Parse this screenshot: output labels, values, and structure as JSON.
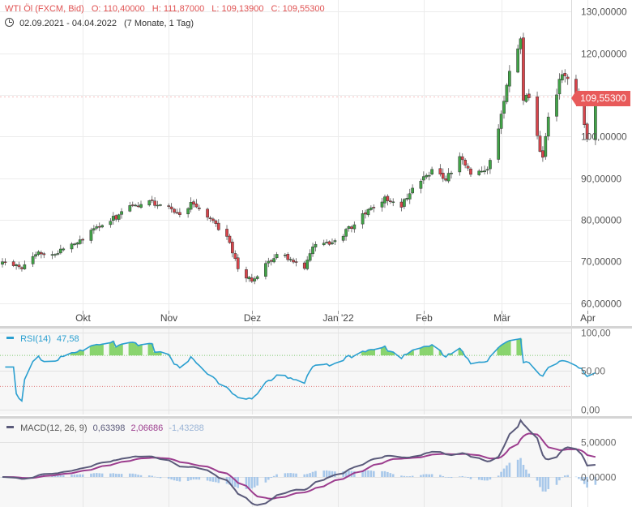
{
  "header": {
    "instrument": "WTI Öl (FXCM, Bid)",
    "open": "O: 110,40000",
    "high": "H: 111,87000",
    "low": "L: 109,13900",
    "close": "C: 109,55300",
    "period": "02.09.2021 - 04.04.2022",
    "interval": "(7 Monate, 1 Tag)"
  },
  "last_price_badge": "109,55300",
  "rsi_panel": {
    "label": "RSI(14)",
    "value": "47,58"
  },
  "macd_panel": {
    "label": "MACD(12, 26, 9)",
    "macd": "0,63398",
    "signal": "2,06686",
    "histogram": "-1,43288"
  },
  "colors": {
    "up": "#41a447",
    "down": "#d9444b",
    "rsi_line": "#2a9fd0",
    "rsi_fill": "#7ccf5e",
    "macd_line": "#5a5a7a",
    "signal_line": "#9c3d8e",
    "histogram": "#a8c8ea",
    "badge": "#e85a5a"
  },
  "chart_data": [
    {
      "type": "candlestick",
      "x_tick_labels": [
        "Okt",
        "Nov",
        "Dez",
        "Jan '22",
        "Feb",
        "Mär",
        "Apr"
      ],
      "y_tick_labels": [
        "60,00000",
        "70,00000",
        "80,00000",
        "90,00000",
        "100,00000",
        "110,00000",
        "120,00000",
        "130,00000"
      ],
      "y_ticks": [
        60,
        70,
        80,
        90,
        100,
        110,
        120,
        130
      ],
      "ylim": [
        56.5,
        131.5
      ],
      "grid": true,
      "last_price": 109.553,
      "anchors": [
        {
          "date": "2021-09-02",
          "close": 69.9
        },
        {
          "date": "2021-09-09",
          "close": 68.2
        },
        {
          "date": "2021-09-15",
          "close": 72.3
        },
        {
          "date": "2021-09-22",
          "close": 71.9
        },
        {
          "date": "2021-09-30",
          "close": 75.2
        },
        {
          "date": "2021-10-07",
          "close": 78.3
        },
        {
          "date": "2021-10-14",
          "close": 81.2
        },
        {
          "date": "2021-10-20",
          "close": 83.5
        },
        {
          "date": "2021-10-25",
          "close": 84.6
        },
        {
          "date": "2021-11-02",
          "close": 82.6
        },
        {
          "date": "2021-11-05",
          "close": 81.2
        },
        {
          "date": "2021-11-09",
          "close": 84.2
        },
        {
          "date": "2021-11-15",
          "close": 80.6
        },
        {
          "date": "2021-11-22",
          "close": 76.0
        },
        {
          "date": "2021-11-26",
          "close": 68.2
        },
        {
          "date": "2021-12-01",
          "close": 65.2
        },
        {
          "date": "2021-12-06",
          "close": 69.5
        },
        {
          "date": "2021-12-10",
          "close": 71.7
        },
        {
          "date": "2021-12-15",
          "close": 70.5
        },
        {
          "date": "2021-12-20",
          "close": 68.3
        },
        {
          "date": "2021-12-23",
          "close": 73.5
        },
        {
          "date": "2021-12-31",
          "close": 75.0
        },
        {
          "date": "2022-01-07",
          "close": 78.8
        },
        {
          "date": "2022-01-12",
          "close": 82.5
        },
        {
          "date": "2022-01-18",
          "close": 85.5
        },
        {
          "date": "2022-01-24",
          "close": 83.0
        },
        {
          "date": "2022-01-28",
          "close": 87.6
        },
        {
          "date": "2022-02-04",
          "close": 92.1
        },
        {
          "date": "2022-02-09",
          "close": 89.5
        },
        {
          "date": "2022-02-14",
          "close": 95.2
        },
        {
          "date": "2022-02-18",
          "close": 90.9
        },
        {
          "date": "2022-02-24",
          "close": 92.1
        },
        {
          "date": "2022-03-01",
          "close": 105.4
        },
        {
          "date": "2022-03-04",
          "close": 115.7
        },
        {
          "date": "2022-03-08",
          "close": 123.5
        },
        {
          "date": "2022-03-09",
          "close": 108.7
        },
        {
          "date": "2022-03-11",
          "close": 109.3
        },
        {
          "date": "2022-03-15",
          "close": 96.4
        },
        {
          "date": "2022-03-16",
          "close": 95.0
        },
        {
          "date": "2022-03-18",
          "close": 104.7
        },
        {
          "date": "2022-03-23",
          "close": 114.9
        },
        {
          "date": "2022-03-25",
          "close": 113.9
        },
        {
          "date": "2022-03-30",
          "close": 107.8
        },
        {
          "date": "2022-04-01",
          "close": 99.4
        },
        {
          "date": "2022-04-04",
          "close": 109.553
        }
      ]
    },
    {
      "type": "line",
      "title": "RSI(14)",
      "y_tick_labels": [
        "0,00",
        "50,00",
        "100,00"
      ],
      "ylim": [
        0,
        100
      ],
      "reference_levels": [
        70,
        30
      ],
      "last_value": 47.58
    },
    {
      "type": "line",
      "title": "MACD(12, 26, 9)",
      "y_tick_labels": [
        "0,00000",
        "5,00000"
      ],
      "ylim": [
        -5.7,
        9.3
      ],
      "series": [
        "MACD",
        "Signal",
        "Histogram"
      ],
      "last_values": {
        "macd": 0.63398,
        "signal": 2.06686,
        "histogram": -1.43288
      }
    }
  ]
}
